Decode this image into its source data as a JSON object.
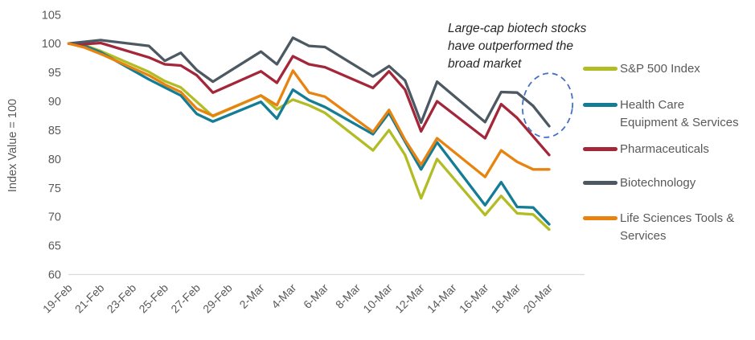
{
  "chart_data": {
    "type": "line",
    "title": "",
    "ylabel": "Index Value = 100",
    "ylim": [
      60,
      105
    ],
    "ytick_step": 5,
    "grid": false,
    "legend_position": "right",
    "axis_color": "#d9d9d9",
    "tick_text_color": "#595959",
    "x_tick_labels": [
      "19-Feb",
      "21-Feb",
      "23-Feb",
      "25-Feb",
      "27-Feb",
      "29-Feb",
      "2-Mar",
      "4-Mar",
      "6-Mar",
      "8-Mar",
      "10-Mar",
      "12-Mar",
      "14-Mar",
      "16-Mar",
      "18-Mar",
      "20-Mar"
    ],
    "x_tick_days": [
      0,
      2,
      4,
      6,
      8,
      10,
      12,
      14,
      16,
      18,
      20,
      22,
      24,
      26,
      28,
      30
    ],
    "x_day_span": 30,
    "dates": [
      "19-Feb",
      "20-Feb",
      "21-Feb",
      "24-Feb",
      "25-Feb",
      "26-Feb",
      "27-Feb",
      "28-Feb",
      "2-Mar",
      "3-Mar",
      "4-Mar",
      "5-Mar",
      "6-Mar",
      "9-Mar",
      "10-Mar",
      "11-Mar",
      "12-Mar",
      "13-Mar",
      "16-Mar",
      "17-Mar",
      "18-Mar",
      "19-Mar",
      "20-Mar"
    ],
    "x_days": [
      0,
      1,
      2,
      5,
      6,
      7,
      8,
      9,
      12,
      13,
      14,
      15,
      16,
      19,
      20,
      21,
      22,
      23,
      26,
      27,
      28,
      29,
      30
    ],
    "series": [
      {
        "name": "S&P 500 Index",
        "slug": "sp-500-index",
        "color": "#b2bd25",
        "legend_lines": [
          "S&P 500 Index"
        ],
        "values": [
          100,
          99.7,
          98.7,
          95.1,
          93.5,
          92.4,
          89.9,
          87.4,
          91.0,
          88.6,
          90.3,
          89.3,
          88.0,
          81.5,
          85.0,
          80.7,
          73.2,
          80.0,
          70.3,
          73.6,
          70.6,
          70.4,
          67.8
        ]
      },
      {
        "name": "Health Care Equipment & Services",
        "slug": "health-care-equipment-services",
        "color": "#147d95",
        "legend_lines": [
          "Health Care",
          "Equipment & Services"
        ],
        "values": [
          100,
          99.6,
          98.5,
          93.8,
          92.4,
          91.0,
          87.8,
          86.5,
          89.9,
          87.0,
          92.0,
          90.2,
          89.0,
          84.3,
          88.0,
          83.0,
          78.2,
          82.9,
          72.0,
          76.0,
          71.7,
          71.6,
          68.7
        ]
      },
      {
        "name": "Pharmaceuticals",
        "slug": "pharmaceuticals",
        "color": "#a32639",
        "legend_lines": [
          "Pharmaceuticals"
        ],
        "values": [
          100,
          99.9,
          100.1,
          97.6,
          96.4,
          96.2,
          94.5,
          91.5,
          95.2,
          93.2,
          97.8,
          96.4,
          95.9,
          92.3,
          95.2,
          92.0,
          84.8,
          90.0,
          83.6,
          89.5,
          87.1,
          83.9,
          80.7
        ]
      },
      {
        "name": "Biotechnology",
        "slug": "biotechnology",
        "color": "#4c5963",
        "legend_lines": [
          "Biotechnology"
        ],
        "values": [
          100,
          100.3,
          100.6,
          99.6,
          97.0,
          98.4,
          95.4,
          93.4,
          98.6,
          96.4,
          101.0,
          99.6,
          99.4,
          94.3,
          96.1,
          93.6,
          86.3,
          93.4,
          86.4,
          91.6,
          91.5,
          89.2,
          85.7
        ]
      },
      {
        "name": "Life Sciences Tools & Services",
        "slug": "life-sciences-tools-services",
        "color": "#e8830f",
        "legend_lines": [
          "Life Sciences Tools &",
          "Services"
        ],
        "values": [
          100,
          99.3,
          98.2,
          94.5,
          92.9,
          91.6,
          88.7,
          87.5,
          91.0,
          89.3,
          95.3,
          91.5,
          90.8,
          84.7,
          88.5,
          83.3,
          79.0,
          83.6,
          76.9,
          81.5,
          79.5,
          78.2,
          78.2
        ]
      }
    ],
    "annotation": {
      "lines": [
        "Large-cap biotech stocks",
        "have outperformed the",
        "broad market"
      ],
      "color": "#262626",
      "target": "Biotechnology line final segment"
    },
    "highlight_ellipse": {
      "color": "#4472c4",
      "style": "dashed",
      "target": "Biotechnology 18-Mar to 20-Mar decline"
    }
  }
}
